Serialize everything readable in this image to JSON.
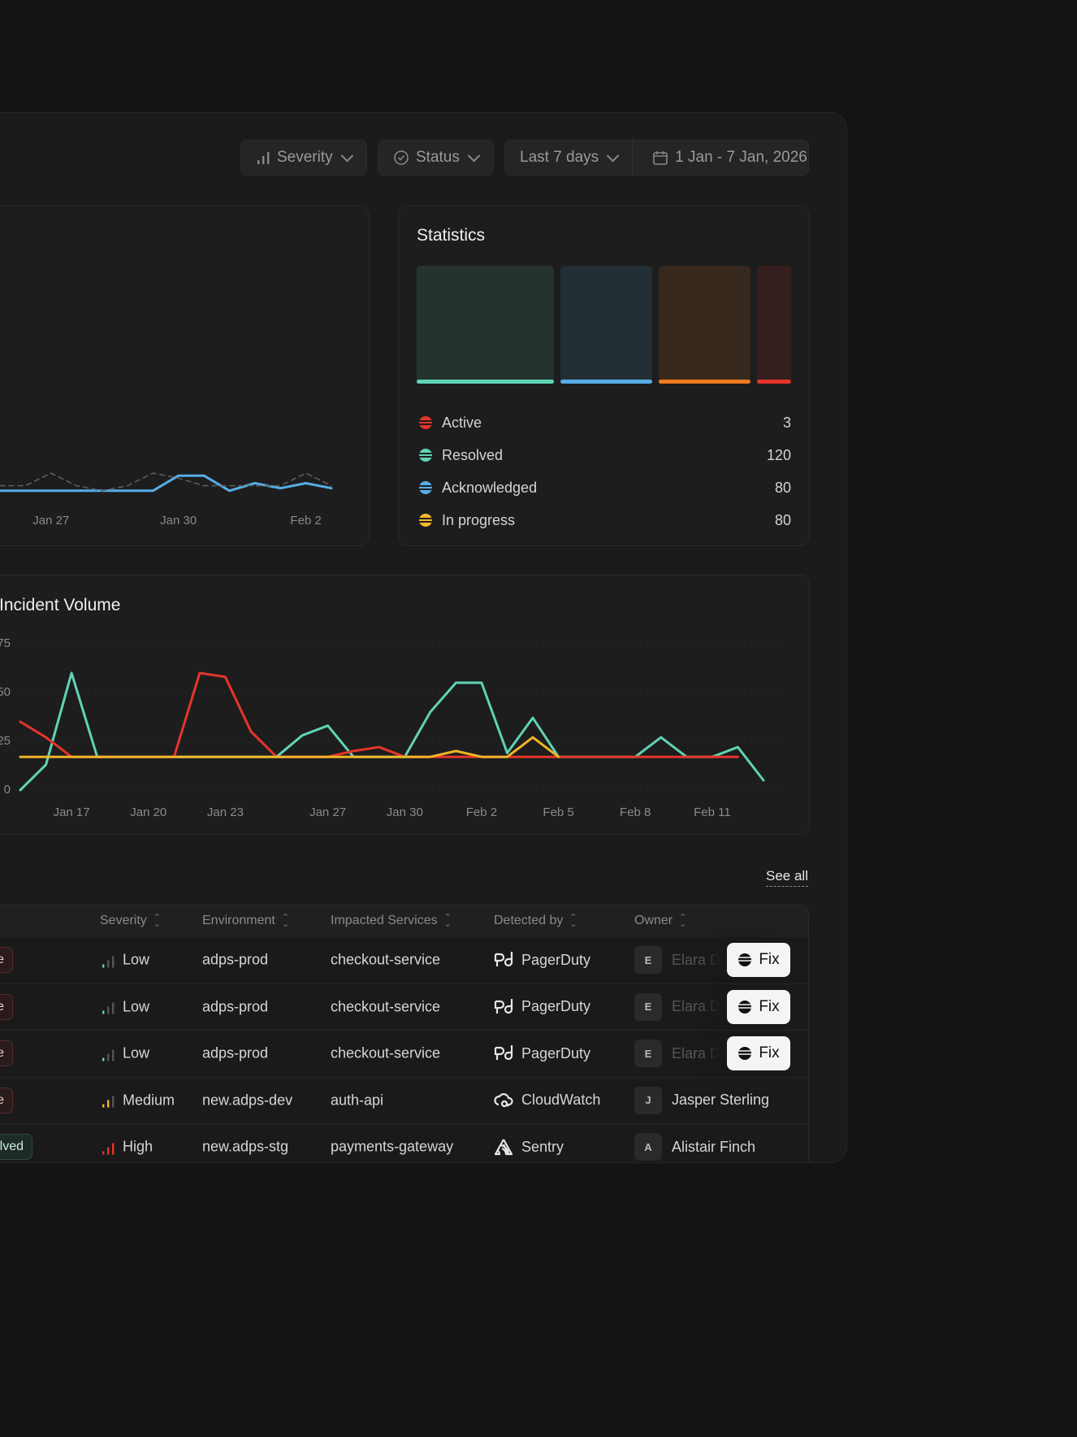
{
  "filters": {
    "severity": "Severity",
    "status": "Status",
    "range": "Last 7 days",
    "dates": "1 Jan - 7 Jan, 2026"
  },
  "chart_data": [
    {
      "type": "line",
      "categories": [
        null,
        null,
        "Jan 27",
        null,
        null,
        null,
        null,
        "Jan 30",
        null,
        null,
        null,
        null,
        "Feb 2",
        null
      ],
      "ylim": [
        0,
        100
      ],
      "series": [
        {
          "color": "#55aee8",
          "values": [
            2,
            2,
            2,
            2,
            2,
            2,
            2,
            8,
            8,
            2,
            5,
            3,
            5,
            3
          ]
        },
        {
          "color": "#5c5c5c",
          "dashed": true,
          "values": [
            4,
            4,
            9,
            4,
            2,
            4,
            9,
            7,
            4,
            4,
            4,
            4,
            9,
            4
          ]
        }
      ]
    },
    {
      "type": "line",
      "title": "Incident Volume",
      "categories": [
        null,
        null,
        "Jan 17",
        null,
        null,
        "Jan 20",
        null,
        null,
        "Jan 23",
        null,
        null,
        null,
        "Jan 27",
        null,
        null,
        "Jan 30",
        null,
        null,
        "Feb 2",
        null,
        null,
        "Feb 5",
        null,
        null,
        "Feb 8",
        null,
        null,
        "Feb 11",
        null,
        null
      ],
      "ylim": [
        0,
        75
      ],
      "yticks": [
        0,
        25,
        50,
        75
      ],
      "grid": true,
      "series": [
        {
          "color": "#5fd3b5",
          "values": [
            0,
            13,
            60,
            17,
            17,
            17,
            17,
            17,
            17,
            17,
            17,
            28,
            33,
            17,
            17,
            17,
            40,
            55,
            55,
            19,
            37,
            17,
            17,
            17,
            17,
            27,
            17,
            17,
            22,
            5
          ]
        },
        {
          "color": "#e5352b",
          "values": [
            35,
            27,
            17,
            17,
            17,
            17,
            17,
            60,
            58,
            30,
            17,
            17,
            17,
            20,
            22,
            17,
            17,
            17,
            17,
            17,
            17,
            17,
            17,
            17,
            17,
            17,
            17,
            17,
            17,
            null
          ]
        },
        {
          "color": "#f0b429",
          "values": [
            17,
            17,
            17,
            17,
            17,
            17,
            17,
            17,
            17,
            17,
            17,
            17,
            17,
            17,
            17,
            17,
            17,
            20,
            17,
            17,
            27,
            17,
            null,
            null,
            null,
            null,
            null,
            null,
            null,
            null
          ]
        }
      ]
    }
  ],
  "statistics": {
    "title": "Statistics",
    "items": [
      {
        "label": "Active",
        "value": 3,
        "color": "#e5352b",
        "bar_color": "#e5352b"
      },
      {
        "label": "Resolved",
        "value": 120,
        "color": "#5fd3b5",
        "bar_color": "#5fd3b5"
      },
      {
        "label": "Acknowledged",
        "value": 80,
        "color": "#55aee8",
        "bar_color": "#55aee8"
      },
      {
        "label": "In progress",
        "value": 80,
        "color": "#f5b82e",
        "bar_color": "#f07a1f"
      }
    ]
  },
  "table": {
    "see_all": "See all",
    "columns": [
      "Severity",
      "Environment",
      "Impacted Services",
      "Detected by",
      "Owner"
    ],
    "action": "Fix",
    "rows": [
      {
        "status": "Active",
        "severity": "Low",
        "environment": "adps-prod",
        "service": "checkout-service",
        "detector": "PagerDuty",
        "initial": "E",
        "owner": "Elara Dawson",
        "fix": true
      },
      {
        "status": "Active",
        "severity": "Low",
        "environment": "adps-prod",
        "service": "checkout-service",
        "detector": "PagerDuty",
        "initial": "E",
        "owner": "Elara Dawson",
        "fix": true
      },
      {
        "status": "Active",
        "severity": "Low",
        "environment": "adps-prod",
        "service": "checkout-service",
        "detector": "PagerDuty",
        "initial": "E",
        "owner": "Elara Dawson",
        "fix": true
      },
      {
        "status": "Active",
        "severity": "Medium",
        "environment": "new.adps-dev",
        "service": "auth-api",
        "detector": "CloudWatch",
        "initial": "J",
        "owner": "Jasper Sterling",
        "fix": false
      },
      {
        "status": "Resolved",
        "severity": "High",
        "environment": "new.adps-stg",
        "service": "payments-gateway",
        "detector": "Sentry",
        "initial": "A",
        "owner": "Alistair Finch",
        "fix": false
      }
    ]
  }
}
